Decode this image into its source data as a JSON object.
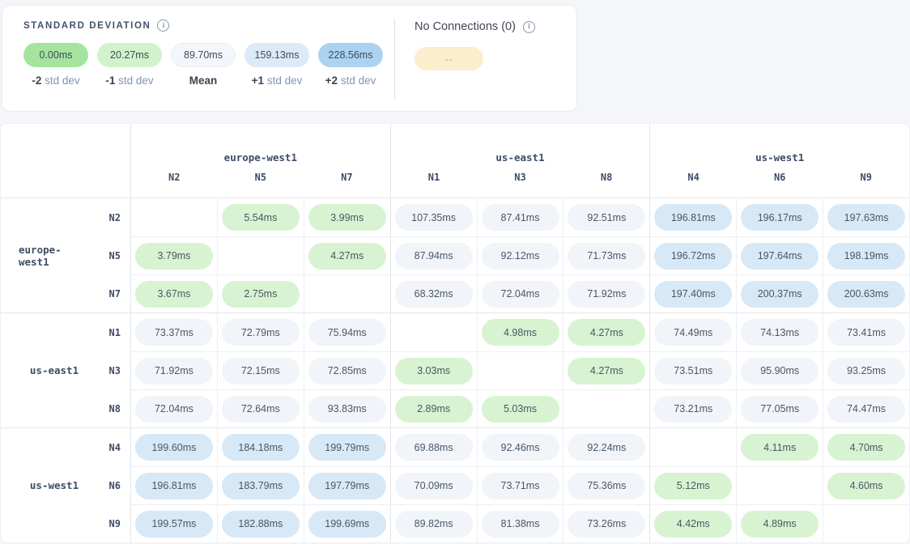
{
  "legend": {
    "title": "STANDARD DEVIATION",
    "items": [
      {
        "value": "0.00ms",
        "label_strong": "-2",
        "label_rest": "std dev",
        "color": "#a5e49f",
        "pale": false
      },
      {
        "value": "20.27ms",
        "label_strong": "-1",
        "label_rest": "std dev",
        "color": "#d2f2cb",
        "pale": false
      },
      {
        "value": "89.70ms",
        "label_strong": "Mean",
        "label_rest": "",
        "color": "#f3f6fa",
        "pale": true
      },
      {
        "value": "159.13ms",
        "label_strong": "+1",
        "label_rest": "std dev",
        "color": "#dceaf8",
        "pale": false
      },
      {
        "value": "228.56ms",
        "label_strong": "+2",
        "label_rest": "std dev",
        "color": "#abd3f1",
        "pale": false
      }
    ],
    "thresholds": {
      "low": 20.27,
      "high": 159.13
    }
  },
  "no_connections": {
    "label": "No Connections (0)",
    "pill_text": "--",
    "pill_color": "#fcedcd"
  },
  "colors": {
    "cell_green": "#d8f3d1",
    "cell_gray": "#f1f4f8",
    "cell_blue": "#d7e8f7"
  },
  "matrix": {
    "column_groups": [
      {
        "region": "europe-west1",
        "nodes": [
          "N2",
          "N5",
          "N7"
        ]
      },
      {
        "region": "us-east1",
        "nodes": [
          "N1",
          "N3",
          "N8"
        ]
      },
      {
        "region": "us-west1",
        "nodes": [
          "N4",
          "N6",
          "N9"
        ]
      }
    ],
    "row_groups": [
      {
        "region": "europe-west1",
        "rows": [
          {
            "node": "N2",
            "cells": [
              null,
              "5.54ms",
              "3.99ms",
              "107.35ms",
              "87.41ms",
              "92.51ms",
              "196.81ms",
              "196.17ms",
              "197.63ms"
            ]
          },
          {
            "node": "N5",
            "cells": [
              "3.79ms",
              null,
              "4.27ms",
              "87.94ms",
              "92.12ms",
              "71.73ms",
              "196.72ms",
              "197.64ms",
              "198.19ms"
            ]
          },
          {
            "node": "N7",
            "cells": [
              "3.67ms",
              "2.75ms",
              null,
              "68.32ms",
              "72.04ms",
              "71.92ms",
              "197.40ms",
              "200.37ms",
              "200.63ms"
            ]
          }
        ]
      },
      {
        "region": "us-east1",
        "rows": [
          {
            "node": "N1",
            "cells": [
              "73.37ms",
              "72.79ms",
              "75.94ms",
              null,
              "4.98ms",
              "4.27ms",
              "74.49ms",
              "74.13ms",
              "73.41ms"
            ]
          },
          {
            "node": "N3",
            "cells": [
              "71.92ms",
              "72.15ms",
              "72.85ms",
              "3.03ms",
              null,
              "4.27ms",
              "73.51ms",
              "95.90ms",
              "93.25ms"
            ]
          },
          {
            "node": "N8",
            "cells": [
              "72.04ms",
              "72.64ms",
              "93.83ms",
              "2.89ms",
              "5.03ms",
              null,
              "73.21ms",
              "77.05ms",
              "74.47ms"
            ]
          }
        ]
      },
      {
        "region": "us-west1",
        "rows": [
          {
            "node": "N4",
            "cells": [
              "199.60ms",
              "184.18ms",
              "199.79ms",
              "69.88ms",
              "92.46ms",
              "92.24ms",
              null,
              "4.11ms",
              "4.70ms"
            ]
          },
          {
            "node": "N6",
            "cells": [
              "196.81ms",
              "183.79ms",
              "197.79ms",
              "70.09ms",
              "73.71ms",
              "75.36ms",
              "5.12ms",
              null,
              "4.60ms"
            ]
          },
          {
            "node": "N9",
            "cells": [
              "199.57ms",
              "182.88ms",
              "199.69ms",
              "89.82ms",
              "81.38ms",
              "73.26ms",
              "4.42ms",
              "4.89ms",
              null
            ]
          }
        ]
      }
    ]
  }
}
